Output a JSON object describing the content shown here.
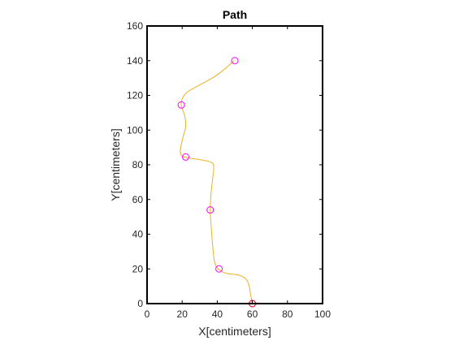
{
  "chart_data": {
    "type": "line",
    "title": "Path",
    "xlabel": "X[centimeters]",
    "ylabel": "Y[centimeters]",
    "xlim": [
      0,
      100
    ],
    "ylim": [
      0,
      160
    ],
    "x_ticks": [
      "0",
      "20",
      "40",
      "60",
      "80",
      "100"
    ],
    "y_ticks": [
      "0",
      "20",
      "40",
      "60",
      "80",
      "100",
      "120",
      "140",
      "160"
    ],
    "grid": false,
    "legend": "none",
    "series": [
      {
        "kind": "line",
        "color": "#EDB120",
        "points": [
          [
            60,
            0
          ],
          [
            59,
            5
          ],
          [
            58,
            11
          ],
          [
            56,
            14.5
          ],
          [
            52,
            16.5
          ],
          [
            45,
            17.5
          ],
          [
            40.5,
            20
          ],
          [
            38.5,
            24
          ],
          [
            37.5,
            32
          ],
          [
            36.5,
            45
          ],
          [
            36,
            54
          ],
          [
            36.5,
            64
          ],
          [
            37.5,
            73
          ],
          [
            38,
            79
          ],
          [
            36.5,
            81.5
          ],
          [
            30,
            83
          ],
          [
            23,
            84
          ],
          [
            19.5,
            85.5
          ],
          [
            19,
            89
          ],
          [
            20.5,
            96
          ],
          [
            22,
            102
          ],
          [
            21.5,
            108
          ],
          [
            19.5,
            114
          ],
          [
            20,
            118
          ],
          [
            23,
            122
          ],
          [
            30,
            126
          ],
          [
            38,
            130.5
          ],
          [
            44,
            135
          ],
          [
            49.5,
            140
          ]
        ]
      },
      {
        "kind": "markers",
        "marker": "circle",
        "color": "#FF00FF",
        "points": [
          [
            60,
            0
          ],
          [
            41,
            20
          ],
          [
            36,
            54
          ],
          [
            22,
            84.5
          ],
          [
            19.5,
            114.5
          ],
          [
            50,
            140
          ]
        ]
      },
      {
        "kind": "markers",
        "marker": "circle",
        "color": "#FF0000",
        "points": [
          [
            60,
            0
          ]
        ]
      }
    ]
  }
}
